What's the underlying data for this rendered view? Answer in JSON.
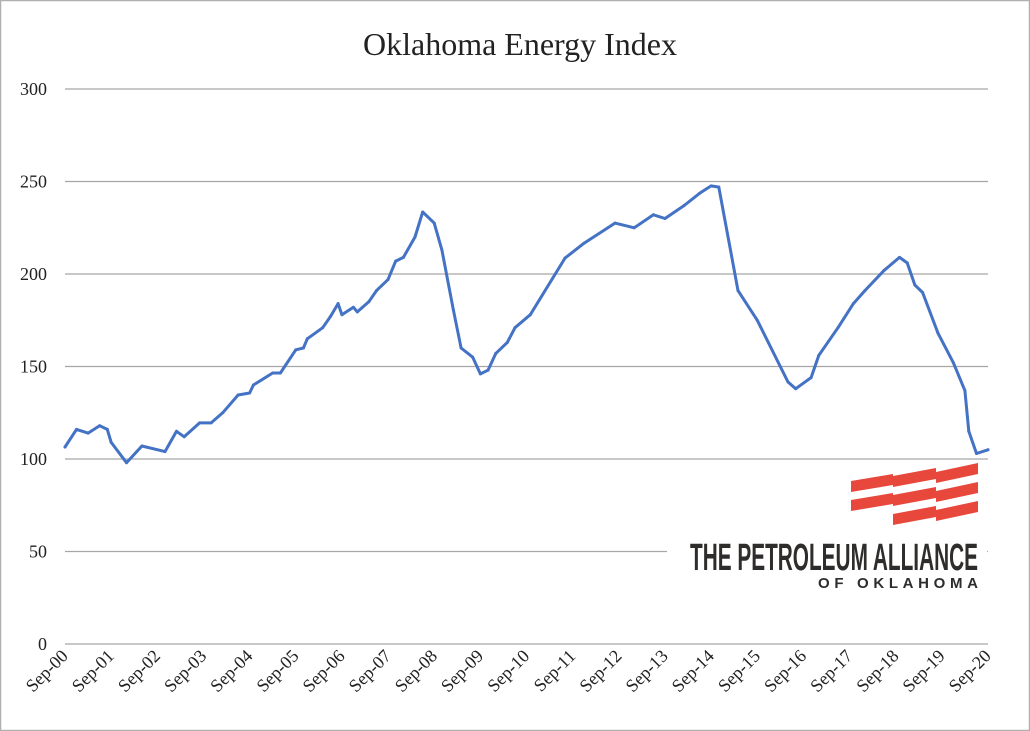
{
  "chart_data": {
    "type": "line",
    "title": "Oklahoma Energy Index",
    "xlabel": "",
    "ylabel": "",
    "ylim": [
      0,
      300
    ],
    "y_ticks": [
      0,
      50,
      100,
      150,
      200,
      250,
      300
    ],
    "x_tick_labels": [
      "Sep-00",
      "Sep-01",
      "Sep-02",
      "Sep-03",
      "Sep-04",
      "Sep-05",
      "Sep-06",
      "Sep-07",
      "Sep-08",
      "Sep-09",
      "Sep-10",
      "Sep-11",
      "Sep-12",
      "Sep-13",
      "Sep-14",
      "Sep-15",
      "Sep-16",
      "Sep-17",
      "Sep-18",
      "Sep-19",
      "Sep-20"
    ],
    "x_range": [
      "2000-09",
      "2020-09"
    ],
    "grid": "horizontal",
    "series": [
      {
        "color": "#4472c4",
        "points": [
          [
            "2000-09",
            106.5
          ],
          [
            "2000-12",
            116
          ],
          [
            "2001-03",
            114
          ],
          [
            "2001-06",
            118
          ],
          [
            "2001-08",
            116
          ],
          [
            "2001-09",
            109
          ],
          [
            "2002-01",
            98
          ],
          [
            "2002-05",
            107
          ],
          [
            "2002-11",
            104
          ],
          [
            "2003-02",
            115
          ],
          [
            "2003-04",
            112
          ],
          [
            "2003-08",
            119.5
          ],
          [
            "2003-11",
            119.5
          ],
          [
            "2004-02",
            125
          ],
          [
            "2004-06",
            134.6
          ],
          [
            "2004-09",
            135.7
          ],
          [
            "2004-10",
            140
          ],
          [
            "2005-03",
            146.5
          ],
          [
            "2005-05",
            146.5
          ],
          [
            "2005-09",
            159
          ],
          [
            "2005-11",
            160
          ],
          [
            "2005-12",
            165
          ],
          [
            "2006-04",
            171
          ],
          [
            "2006-06",
            177
          ],
          [
            "2006-08",
            184
          ],
          [
            "2006-09",
            178
          ],
          [
            "2006-12",
            182
          ],
          [
            "2007-01",
            179.5
          ],
          [
            "2007-04",
            185
          ],
          [
            "2007-06",
            191
          ],
          [
            "2007-09",
            197
          ],
          [
            "2007-11",
            207
          ],
          [
            "2008-01",
            209
          ],
          [
            "2008-04",
            220
          ],
          [
            "2008-06",
            233.5
          ],
          [
            "2008-09",
            227.5
          ],
          [
            "2008-11",
            213
          ],
          [
            "2009-02",
            180.5
          ],
          [
            "2009-04",
            160
          ],
          [
            "2009-07",
            155
          ],
          [
            "2009-09",
            146
          ],
          [
            "2009-11",
            148
          ],
          [
            "2010-01",
            157
          ],
          [
            "2010-04",
            163
          ],
          [
            "2010-06",
            171
          ],
          [
            "2010-10",
            178
          ],
          [
            "2011-07",
            208.6
          ],
          [
            "2011-12",
            216.7
          ],
          [
            "2012-08",
            227.5
          ],
          [
            "2013-01",
            225
          ],
          [
            "2013-06",
            232
          ],
          [
            "2013-09",
            230
          ],
          [
            "2014-02",
            237
          ],
          [
            "2014-06",
            243.6
          ],
          [
            "2014-09",
            247.6
          ],
          [
            "2014-11",
            247
          ],
          [
            "2015-04",
            191
          ],
          [
            "2015-09",
            175
          ],
          [
            "2016-05",
            141.6
          ],
          [
            "2016-07",
            138
          ],
          [
            "2016-11",
            144
          ],
          [
            "2017-01",
            156
          ],
          [
            "2017-06",
            171
          ],
          [
            "2017-10",
            184
          ],
          [
            "2018-01",
            191
          ],
          [
            "2018-06",
            202
          ],
          [
            "2018-10",
            209
          ],
          [
            "2018-12",
            206
          ],
          [
            "2019-02",
            194
          ],
          [
            "2019-04",
            190
          ],
          [
            "2019-08",
            168
          ],
          [
            "2019-12",
            152
          ],
          [
            "2020-03",
            137
          ],
          [
            "2020-04",
            115
          ],
          [
            "2020-06",
            103
          ],
          [
            "2020-09",
            105
          ]
        ]
      }
    ]
  },
  "logo": {
    "line1": "THE PETROLEUM ALLIANCE",
    "line2": "OF OKLAHOMA",
    "red": "#e8473c",
    "dark": "#2f2d2c"
  },
  "colors": {
    "grid": "#a6a6a6",
    "border": "#b0b0b0"
  }
}
